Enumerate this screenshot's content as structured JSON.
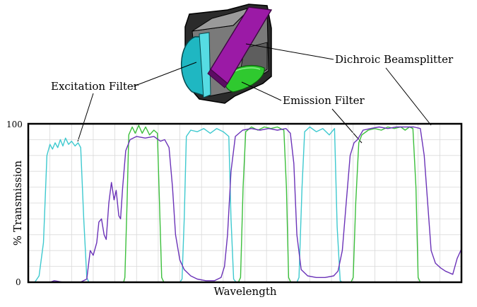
{
  "labels": {
    "excitation": "Excitation Filter",
    "dichroic": "Dichroic Beamsplitter",
    "emission": "Emission Filter"
  },
  "colors": {
    "excitation": "#3ec9cf",
    "emission": "#3cbf3c",
    "dichroic": "#6b33b8",
    "cube_body": "#7a7a7a",
    "cube_dark": "#2b2b2b",
    "dichroic_plate": "#9b1aa6",
    "excitation_glass": "#1fb7c2",
    "emission_glass": "#2fc92f"
  },
  "chart_data": {
    "type": "line",
    "xlabel": "Wavelength",
    "ylabel": "% Transmission",
    "y_ticks": [
      "100",
      "0"
    ],
    "ylim": [
      0,
      100
    ],
    "xlim": [
      0,
      100
    ],
    "grid": true,
    "series": [
      {
        "id": "excitation",
        "points": [
          [
            0,
            0
          ],
          [
            1.5,
            0
          ],
          [
            2.5,
            4
          ],
          [
            3.5,
            25
          ],
          [
            4.3,
            80
          ],
          [
            5,
            87
          ],
          [
            5.6,
            84
          ],
          [
            6.2,
            88
          ],
          [
            6.8,
            85
          ],
          [
            7.4,
            90
          ],
          [
            8,
            86
          ],
          [
            8.6,
            91
          ],
          [
            9.3,
            87
          ],
          [
            10,
            89
          ],
          [
            10.8,
            86
          ],
          [
            11.5,
            88
          ],
          [
            12.1,
            85
          ],
          [
            12.8,
            40
          ],
          [
            13.5,
            3
          ],
          [
            14,
            0
          ],
          [
            35,
            0
          ],
          [
            35.5,
            2
          ],
          [
            36,
            40
          ],
          [
            36.5,
            92
          ],
          [
            37.5,
            96
          ],
          [
            39,
            95
          ],
          [
            40.5,
            97
          ],
          [
            42,
            94
          ],
          [
            43.5,
            97
          ],
          [
            45,
            95
          ],
          [
            46.3,
            92
          ],
          [
            46.8,
            40
          ],
          [
            47.4,
            2
          ],
          [
            48,
            0
          ],
          [
            62,
            0
          ],
          [
            62.5,
            3
          ],
          [
            63.2,
            60
          ],
          [
            63.8,
            95
          ],
          [
            65,
            98
          ],
          [
            66.5,
            95
          ],
          [
            68,
            97
          ],
          [
            69.5,
            93
          ],
          [
            70.7,
            97
          ],
          [
            71.3,
            35
          ],
          [
            72,
            1
          ],
          [
            72.5,
            0
          ],
          [
            100,
            0
          ]
        ]
      },
      {
        "id": "emission",
        "points": [
          [
            0,
            0
          ],
          [
            22,
            0
          ],
          [
            22.3,
            3
          ],
          [
            22.8,
            50
          ],
          [
            23.2,
            93
          ],
          [
            24,
            98
          ],
          [
            24.7,
            94
          ],
          [
            25.5,
            99
          ],
          [
            26.3,
            94
          ],
          [
            27.1,
            98
          ],
          [
            28,
            93
          ],
          [
            29,
            96
          ],
          [
            29.8,
            94
          ],
          [
            30.3,
            50
          ],
          [
            30.8,
            3
          ],
          [
            31.3,
            0
          ],
          [
            48.5,
            0
          ],
          [
            49,
            3
          ],
          [
            49.6,
            60
          ],
          [
            50.2,
            95
          ],
          [
            51.5,
            98
          ],
          [
            53,
            96
          ],
          [
            54.5,
            98
          ],
          [
            56,
            97
          ],
          [
            57.5,
            98
          ],
          [
            59,
            96
          ],
          [
            59.6,
            60
          ],
          [
            60.1,
            3
          ],
          [
            60.6,
            0
          ],
          [
            74.5,
            0
          ],
          [
            75,
            3
          ],
          [
            75.6,
            50
          ],
          [
            76.3,
            88
          ],
          [
            77,
            93
          ],
          [
            78.5,
            96
          ],
          [
            80,
            97
          ],
          [
            81.5,
            96
          ],
          [
            83,
            98
          ],
          [
            84.5,
            97
          ],
          [
            86,
            98
          ],
          [
            87,
            96
          ],
          [
            88,
            98
          ],
          [
            88.8,
            97
          ],
          [
            89.5,
            60
          ],
          [
            90,
            3
          ],
          [
            90.5,
            0
          ],
          [
            100,
            0
          ]
        ]
      },
      {
        "id": "dichroic",
        "points": [
          [
            0,
            0
          ],
          [
            5,
            0
          ],
          [
            6,
            1
          ],
          [
            8,
            0
          ],
          [
            12,
            0
          ],
          [
            13.5,
            2
          ],
          [
            14.3,
            20
          ],
          [
            15,
            17
          ],
          [
            15.8,
            25
          ],
          [
            16.3,
            38
          ],
          [
            16.9,
            40
          ],
          [
            17.5,
            30
          ],
          [
            18,
            27
          ],
          [
            18.6,
            50
          ],
          [
            19.2,
            63
          ],
          [
            19.8,
            52
          ],
          [
            20.3,
            58
          ],
          [
            20.9,
            42
          ],
          [
            21.3,
            40
          ],
          [
            21.8,
            60
          ],
          [
            22.5,
            83
          ],
          [
            23.5,
            90
          ],
          [
            25,
            92
          ],
          [
            27,
            91
          ],
          [
            29,
            92
          ],
          [
            30.5,
            89
          ],
          [
            31.5,
            90
          ],
          [
            32.5,
            85
          ],
          [
            33.3,
            60
          ],
          [
            34,
            30
          ],
          [
            35,
            14
          ],
          [
            36,
            8
          ],
          [
            37.5,
            4
          ],
          [
            39,
            2
          ],
          [
            41,
            1
          ],
          [
            43,
            1
          ],
          [
            44.5,
            3
          ],
          [
            45.3,
            10
          ],
          [
            46,
            30
          ],
          [
            46.8,
            70
          ],
          [
            47.8,
            92
          ],
          [
            49.5,
            96
          ],
          [
            51.5,
            97
          ],
          [
            53.5,
            96
          ],
          [
            55.5,
            97
          ],
          [
            57.5,
            96
          ],
          [
            59.5,
            97
          ],
          [
            60.5,
            94
          ],
          [
            61.3,
            75
          ],
          [
            62,
            30
          ],
          [
            63,
            8
          ],
          [
            64.5,
            4
          ],
          [
            66.5,
            3
          ],
          [
            68.5,
            3
          ],
          [
            70.5,
            4
          ],
          [
            71.5,
            7
          ],
          [
            72.5,
            20
          ],
          [
            73.4,
            50
          ],
          [
            74.3,
            80
          ],
          [
            75.2,
            88
          ],
          [
            76,
            90
          ],
          [
            77.3,
            96
          ],
          [
            79,
            97
          ],
          [
            81,
            98
          ],
          [
            83,
            97
          ],
          [
            85,
            98
          ],
          [
            87,
            98
          ],
          [
            89,
            98
          ],
          [
            90.5,
            97
          ],
          [
            91.4,
            80
          ],
          [
            92.2,
            50
          ],
          [
            93,
            20
          ],
          [
            94,
            12
          ],
          [
            95.2,
            9
          ],
          [
            96.3,
            7
          ],
          [
            98,
            5
          ],
          [
            99,
            15
          ],
          [
            100,
            21
          ]
        ]
      }
    ]
  }
}
